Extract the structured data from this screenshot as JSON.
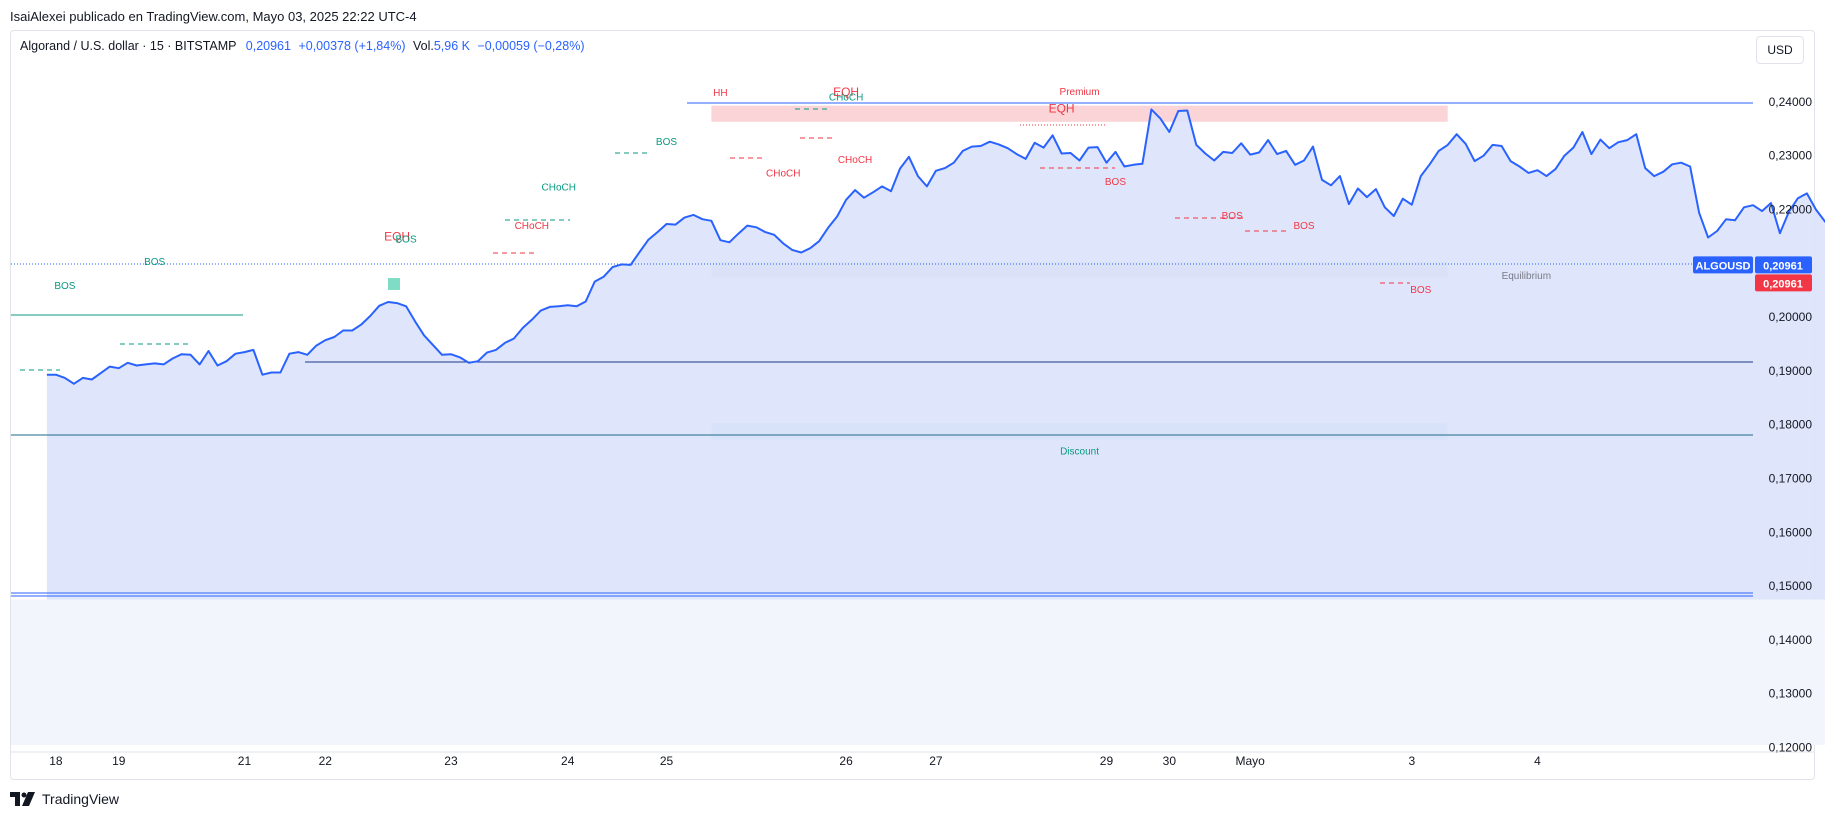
{
  "caption": "IsaiAlexei publicado en TradingView.com, Mayo 03, 2025 22:22 UTC-4",
  "legend": {
    "symbol": "Algorand / U.S. dollar · 15 · BITSTAMP",
    "price": "0,20961",
    "change": "+0,00378 (+1,84%)",
    "vol_label": "Vol.",
    "vol_value": "5,96 K",
    "vol_change": "−0,00059 (−0,28%)"
  },
  "currency_button": "USD",
  "brand": "TradingView",
  "colors": {
    "line": "#2962ff",
    "area": "#dbe3fb",
    "bullish": "#089981",
    "bearish": "#f23645",
    "premium_zone": "#f9cdd0",
    "discount_zone": "#a9d7e3",
    "equilibrium_zone": "#c7ccd8"
  },
  "chart_data": {
    "type": "line",
    "symbol": "ALGOUSD",
    "last_price": 0.20961,
    "y_axis_ticks": [
      "0,24000",
      "0,23000",
      "0,22000",
      "0,21000",
      "0,20000",
      "0,19000",
      "0,18000",
      "0,17000",
      "0,16000",
      "0,15000",
      "0,14000",
      "0,13000",
      "0,12000"
    ],
    "y_tick_values": [
      0.24,
      0.23,
      0.22,
      0.21,
      0.2,
      0.19,
      0.18,
      0.17,
      0.16,
      0.15,
      0.14,
      0.13,
      0.12
    ],
    "ylim": [
      0.12,
      0.24
    ],
    "x_axis_ticks": [
      {
        "label": "18",
        "t": 1
      },
      {
        "label": "19",
        "t": 8
      },
      {
        "label": "21",
        "t": 22
      },
      {
        "label": "22",
        "t": 31
      },
      {
        "label": "23",
        "t": 45
      },
      {
        "label": "24",
        "t": 58
      },
      {
        "label": "25",
        "t": 69
      },
      {
        "label": "26",
        "t": 89
      },
      {
        "label": "27",
        "t": 99
      },
      {
        "label": "29",
        "t": 118
      },
      {
        "label": "30",
        "t": 125
      },
      {
        "label": "Mayo",
        "t": 134
      },
      {
        "label": "3",
        "t": 152
      },
      {
        "label": "4",
        "t": 166
      }
    ],
    "x_range": [
      -4,
      190
    ],
    "series": [
      {
        "values": [
          0.1893,
          0.1893,
          0.1887,
          0.1876,
          0.1887,
          0.1884,
          0.1896,
          0.1908,
          0.1905,
          0.1915,
          0.191,
          0.1912,
          0.1914,
          0.1912,
          0.1923,
          0.1931,
          0.193,
          0.1912,
          0.1937,
          0.191,
          0.1918,
          0.1932,
          0.1935,
          0.1939,
          0.1893,
          0.1897,
          0.1897,
          0.1932,
          0.1935,
          0.193,
          0.1947,
          0.1957,
          0.1963,
          0.1975,
          0.1975,
          0.1986,
          0.2002,
          0.2021,
          0.2028,
          0.2026,
          0.202,
          0.1992,
          0.1966,
          0.1948,
          0.193,
          0.1931,
          0.1925,
          0.1915,
          0.1918,
          0.1934,
          0.1939,
          0.1952,
          0.196,
          0.198,
          0.1995,
          0.2012,
          0.2019,
          0.202,
          0.2022,
          0.202,
          0.2029,
          0.2066,
          0.2075,
          0.2093,
          0.2098,
          0.2097,
          0.2121,
          0.2144,
          0.2158,
          0.2173,
          0.2172,
          0.2185,
          0.219,
          0.2182,
          0.2179,
          0.2143,
          0.2139,
          0.2155,
          0.217,
          0.2167,
          0.2158,
          0.2153,
          0.2137,
          0.2125,
          0.212,
          0.2128,
          0.2141,
          0.2166,
          0.2187,
          0.2218,
          0.2236,
          0.2222,
          0.2232,
          0.2243,
          0.2234,
          0.2276,
          0.2298,
          0.2262,
          0.2243,
          0.2272,
          0.2277,
          0.2287,
          0.2309,
          0.2317,
          0.2318,
          0.2326,
          0.2321,
          0.2314,
          0.2303,
          0.2294,
          0.2324,
          0.2315,
          0.2338,
          0.2304,
          0.2305,
          0.2291,
          0.2315,
          0.2316,
          0.2287,
          0.2307,
          0.228,
          0.2283,
          0.2285,
          0.2386,
          0.2369,
          0.2344,
          0.2383,
          0.2384,
          0.232,
          0.2304,
          0.2291,
          0.2307,
          0.2305,
          0.2323,
          0.2302,
          0.2306,
          0.2329,
          0.2303,
          0.2309,
          0.2283,
          0.2291,
          0.2317,
          0.2255,
          0.2245,
          0.2262,
          0.221,
          0.2239,
          0.2223,
          0.2238,
          0.2204,
          0.2188,
          0.222,
          0.2209,
          0.2262,
          0.2284,
          0.2309,
          0.232,
          0.234,
          0.2322,
          0.229,
          0.23,
          0.232,
          0.2318,
          0.229,
          0.228,
          0.2268,
          0.2273,
          0.2262,
          0.2275,
          0.23,
          0.2315,
          0.2344,
          0.2303,
          0.233,
          0.2314,
          0.2325,
          0.2329,
          0.234,
          0.2277,
          0.2262,
          0.227,
          0.2284,
          0.2287,
          0.228,
          0.2194,
          0.2148,
          0.216,
          0.2182,
          0.218,
          0.2204,
          0.2208,
          0.2197,
          0.2212,
          0.2156,
          0.2196,
          0.2221,
          0.223,
          0.22,
          0.2178,
          0.216,
          0.2155,
          0.2145,
          0.2144,
          0.219,
          0.2152,
          0.2145,
          0.2148,
          0.2155,
          0.2167,
          0.2186,
          0.2179,
          0.2134,
          0.2117,
          0.2105,
          0.2102,
          0.2093,
          0.2087,
          0.2081,
          0.2071,
          0.208,
          0.2065,
          0.2076,
          0.2055,
          0.2058,
          0.2066,
          0.208,
          0.2087,
          0.2085,
          0.2063,
          0.2083,
          0.2096
        ]
      }
    ],
    "structure_labels": [
      {
        "text": "BOS",
        "kind": "bullish",
        "t": 2,
        "price": 0.2052
      },
      {
        "text": "BOS",
        "kind": "bullish",
        "t": 12,
        "price": 0.2097
      },
      {
        "text": "EQH",
        "kind": "bearish",
        "t": 39,
        "price": 0.2142
      },
      {
        "text": "BOS",
        "kind": "bullish",
        "t": 40,
        "price": 0.2139
      },
      {
        "text": "CHoCH",
        "kind": "bullish",
        "t": 57,
        "price": 0.2235
      },
      {
        "text": "CHoCH",
        "kind": "bearish",
        "t": 54,
        "price": 0.2164
      },
      {
        "text": "BOS",
        "kind": "bullish",
        "t": 69,
        "price": 0.232
      },
      {
        "text": "HH",
        "kind": "bearish",
        "t": 75,
        "price": 0.2411
      },
      {
        "text": "EQH",
        "kind": "bearish",
        "t": 89,
        "price": 0.2411
      },
      {
        "text": "CHoCH",
        "kind": "bullish",
        "t": 89,
        "price": 0.2403
      },
      {
        "text": "CHoCH",
        "kind": "bearish",
        "t": 82,
        "price": 0.2261
      },
      {
        "text": "CHoCH",
        "kind": "bearish",
        "t": 90,
        "price": 0.2286
      },
      {
        "text": "Premium",
        "kind": "bearish",
        "t": 115,
        "price": 0.2413
      },
      {
        "text": "EQH",
        "kind": "bearish",
        "t": 113,
        "price": 0.238
      },
      {
        "text": "BOS",
        "kind": "bearish",
        "t": 119,
        "price": 0.2246
      },
      {
        "text": "BOS",
        "kind": "bearish",
        "t": 132,
        "price": 0.2182
      },
      {
        "text": "BOS",
        "kind": "bearish",
        "t": 140,
        "price": 0.2164
      },
      {
        "text": "BOS",
        "kind": "bearish",
        "t": 153,
        "price": 0.2045
      },
      {
        "text": "Equilibrium",
        "kind": "neutral",
        "t": 162,
        "price": 0.2071
      },
      {
        "text": "Discount",
        "kind": "bullish",
        "t": 115,
        "price": 0.1745
      }
    ],
    "zones": [
      {
        "name": "Premium",
        "from_t": 74,
        "to_t": 156,
        "from_price": 0.2363,
        "to_price": 0.2393
      },
      {
        "name": "Equilibrium",
        "from_t": 74,
        "to_t": 156,
        "from_price": 0.2073,
        "to_price": 0.2103
      },
      {
        "name": "Discount",
        "from_t": 74,
        "to_t": 156,
        "from_price": 0.1772,
        "to_price": 0.1803
      }
    ],
    "price_labels": [
      {
        "name": "ALGOUSD",
        "value": "0,20961",
        "color": "#2962ff"
      },
      {
        "name": "",
        "value": "0,20961",
        "color": "#f23645"
      }
    ]
  }
}
